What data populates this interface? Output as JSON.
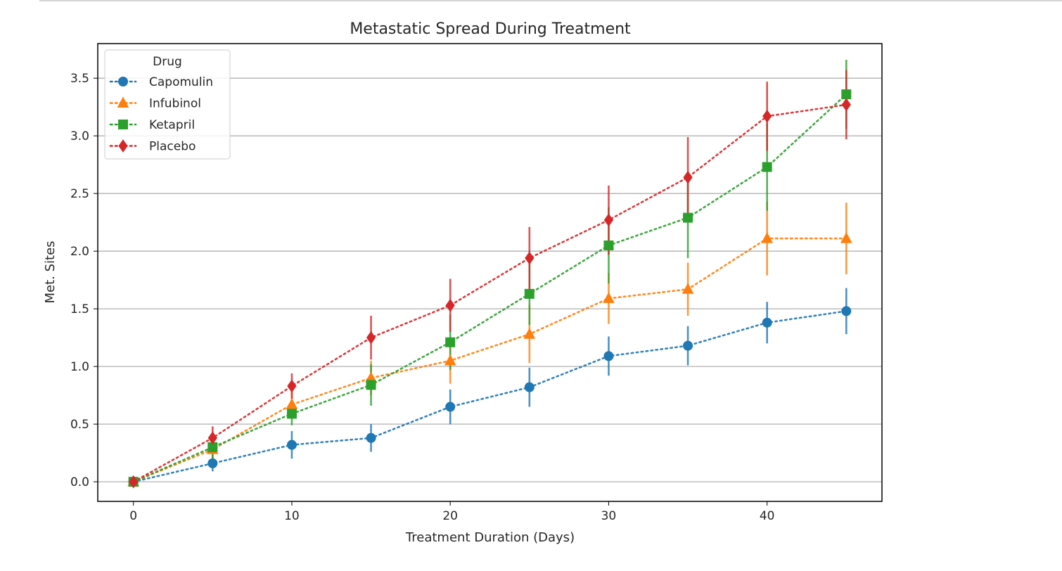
{
  "chart_data": {
    "type": "line",
    "title": "Metastatic Spread During Treatment",
    "xlabel": "Treatment Duration (Days)",
    "ylabel": "Met. Sites",
    "xlim": [
      -2.25,
      47.25
    ],
    "ylim": [
      -0.17,
      3.8
    ],
    "xticks": [
      0,
      10,
      20,
      30,
      40
    ],
    "yticks": [
      0.0,
      0.5,
      1.0,
      1.5,
      2.0,
      2.5,
      3.0,
      3.5
    ],
    "ytick_labels": [
      "0.0",
      "0.5",
      "1.0",
      "1.5",
      "2.0",
      "2.5",
      "3.0",
      "3.5"
    ],
    "grid": "horizontal",
    "line_style": "dotted",
    "error_bars": true,
    "legend": {
      "title": "Drug",
      "position": "top-left"
    },
    "x": [
      0,
      5,
      10,
      15,
      20,
      25,
      30,
      35,
      40,
      45
    ],
    "series": [
      {
        "name": "Capomulin",
        "color": "#1f77b4",
        "marker": "circle",
        "values": [
          0.0,
          0.16,
          0.32,
          0.38,
          0.65,
          0.82,
          1.09,
          1.18,
          1.38,
          1.48
        ],
        "errors": [
          0.0,
          0.07,
          0.12,
          0.12,
          0.15,
          0.17,
          0.17,
          0.17,
          0.18,
          0.2
        ]
      },
      {
        "name": "Infubinol",
        "color": "#ff7f0e",
        "marker": "triangle",
        "values": [
          0.0,
          0.28,
          0.67,
          0.9,
          1.05,
          1.28,
          1.59,
          1.67,
          2.11,
          2.11
        ],
        "errors": [
          0.0,
          0.07,
          0.12,
          0.15,
          0.2,
          0.25,
          0.22,
          0.23,
          0.32,
          0.31
        ]
      },
      {
        "name": "Ketapril",
        "color": "#2ca02c",
        "marker": "square",
        "values": [
          0.0,
          0.3,
          0.59,
          0.84,
          1.21,
          1.63,
          2.05,
          2.29,
          2.73,
          3.36
        ],
        "errors": [
          0.0,
          0.1,
          0.1,
          0.18,
          0.24,
          0.27,
          0.33,
          0.35,
          0.38,
          0.3
        ]
      },
      {
        "name": "Placebo",
        "color": "#d62728",
        "marker": "diamond",
        "values": [
          0.0,
          0.38,
          0.83,
          1.25,
          1.53,
          1.94,
          2.27,
          2.64,
          3.17,
          3.27
        ],
        "errors": [
          0.0,
          0.1,
          0.11,
          0.19,
          0.23,
          0.27,
          0.3,
          0.35,
          0.3,
          0.3
        ]
      }
    ]
  }
}
